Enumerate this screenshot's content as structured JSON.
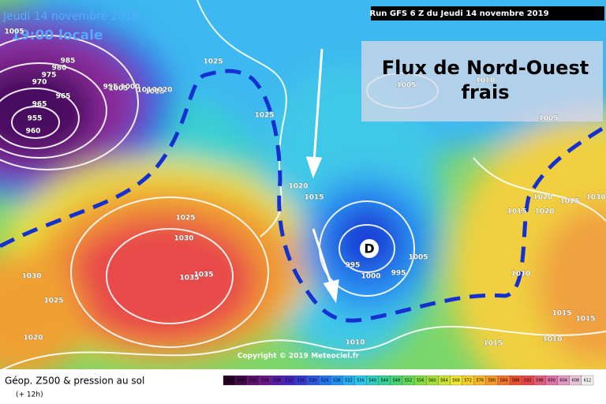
{
  "header": {
    "date": "Jeudi 14 novembre 2019",
    "time": "19:00 locale",
    "run": "Run GFS 6 Z du Jeudi 14 novembre 2019"
  },
  "annotation": {
    "line1": "Flux de Nord-Ouest",
    "line2": "frais"
  },
  "low_marker": "D",
  "isobar_labels": [
    985,
    980,
    975,
    970,
    965,
    965,
    955,
    960,
    995,
    1000,
    1005,
    1010,
    1015,
    1020,
    1025,
    1025,
    1020,
    1015,
    1025,
    1030,
    1035,
    1035,
    1030,
    1025,
    1020,
    1005,
    995,
    1000,
    995,
    1005,
    1010,
    1015,
    1020,
    1020,
    1025,
    1030,
    1005,
    1010,
    1005,
    1015,
    1015,
    1015,
    1010,
    1010
  ],
  "copyright": "Copyright © 2019 Meteociel.fr",
  "legend": {
    "title": "Géop. Z500 & pression au sol",
    "subtitle": "(+ 12h)",
    "ticks": [
      492,
      496,
      500,
      504,
      508,
      512,
      516,
      520,
      524,
      528,
      532,
      536,
      540,
      544,
      548,
      552,
      556,
      560,
      564,
      568,
      572,
      576,
      580,
      584,
      588,
      592,
      596,
      600,
      604,
      608,
      612
    ]
  }
}
